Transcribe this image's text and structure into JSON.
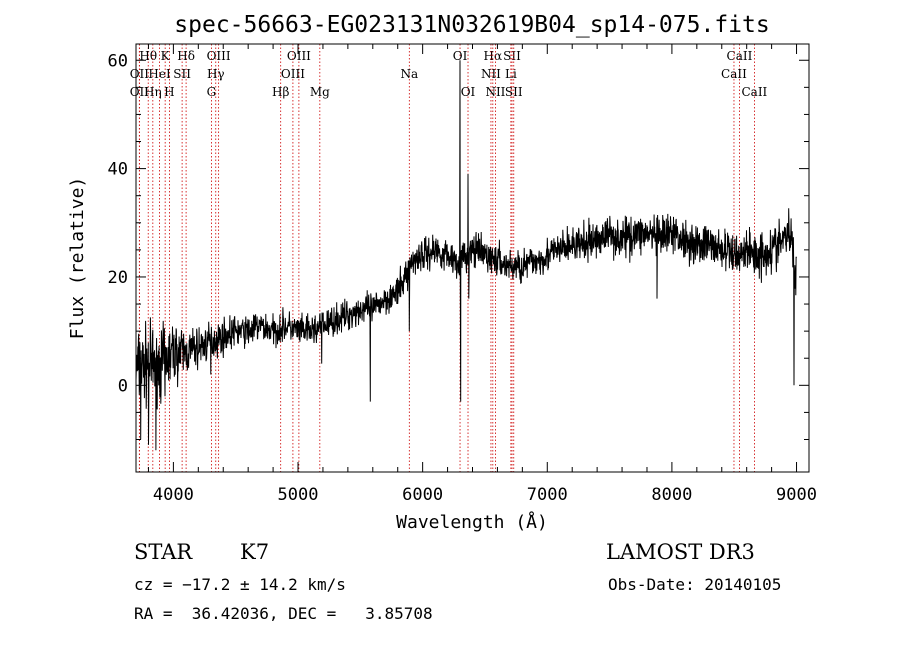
{
  "chart_data": {
    "type": "line",
    "title": "spec-56663-EG023131N032619B04_sp14-075.fits",
    "xlabel": "Wavelength (Å)",
    "ylabel": "Flux (relative)",
    "xlim": [
      3700,
      9100
    ],
    "ylim": [
      -16,
      63
    ],
    "x_ticks": [
      4000,
      5000,
      6000,
      7000,
      8000,
      9000
    ],
    "y_ticks": [
      0,
      20,
      40,
      60
    ],
    "line_color": "#000000",
    "marker_color": "#cc0000",
    "spectrum_anchors": {
      "x": [
        3700,
        3800,
        3900,
        4000,
        4100,
        4200,
        4300,
        4400,
        4500,
        4600,
        4700,
        4800,
        4900,
        5000,
        5100,
        5200,
        5300,
        5400,
        5500,
        5600,
        5700,
        5800,
        5860,
        5900,
        5960,
        6000,
        6100,
        6200,
        6300,
        6400,
        6500,
        6600,
        6700,
        6800,
        6900,
        7000,
        7100,
        7200,
        7300,
        7400,
        7500,
        7600,
        7700,
        7800,
        7900,
        8000,
        8100,
        8200,
        8300,
        8400,
        8500,
        8600,
        8700,
        8800,
        8900,
        8950,
        9000
      ],
      "y": [
        3,
        4,
        4,
        6,
        6,
        7,
        8,
        9,
        10,
        10,
        11,
        10,
        11,
        10,
        10,
        11,
        12,
        13,
        14,
        14,
        16,
        17,
        20,
        22,
        24,
        24,
        25,
        24,
        23,
        25,
        24,
        23,
        22,
        22,
        23,
        24,
        25,
        26,
        26,
        27,
        28,
        27,
        28,
        28,
        27,
        28,
        27,
        26,
        26,
        25,
        24,
        25,
        24,
        25,
        27,
        28,
        20
      ],
      "noise_amplitude": [
        5,
        5,
        4.5,
        4,
        3,
        2.6,
        2.4,
        2.2,
        2,
        2,
        2,
        2,
        2,
        2,
        2,
        2,
        2,
        2,
        2,
        2,
        2,
        2,
        2.2,
        2.2,
        2.2,
        2.2,
        2.2,
        2.2,
        2.2,
        2.2,
        2.2,
        2.2,
        2.2,
        2.2,
        2.2,
        2.2,
        2.3,
        2.3,
        2.4,
        2.5,
        2.6,
        2.6,
        2.6,
        2.6,
        2.6,
        2.6,
        2.6,
        2.6,
        2.6,
        2.6,
        2.8,
        2.8,
        3,
        3,
        3.2,
        3.2,
        3
      ]
    },
    "spectral_features": [
      {
        "x": 3738,
        "y": -10
      },
      {
        "x": 3800,
        "y": -11
      },
      {
        "x": 3860,
        "y": -12
      },
      {
        "x": 3933,
        "y": -2
      },
      {
        "x": 4300,
        "y": 2
      },
      {
        "x": 5190,
        "y": 4
      },
      {
        "x": 5580,
        "y": -3
      },
      {
        "x": 5893,
        "y": 10
      },
      {
        "x": 6300,
        "y": 60
      },
      {
        "x": 6305,
        "y": -3
      },
      {
        "x": 6364,
        "y": 39
      },
      {
        "x": 6370,
        "y": 16
      },
      {
        "x": 7880,
        "y": 16
      },
      {
        "x": 8980,
        "y": 0
      }
    ],
    "line_markers": [
      {
        "label": "Hθ",
        "wavelength": 3798,
        "row": 0
      },
      {
        "label": "OII",
        "wavelength": 3727,
        "row": 1
      },
      {
        "label": "OII",
        "wavelength": 3727,
        "row": 2
      },
      {
        "label": "Hη",
        "wavelength": 3835,
        "row": 2
      },
      {
        "label": "HeI",
        "wavelength": 3889,
        "row": 1
      },
      {
        "label": "K",
        "wavelength": 3934,
        "row": 0
      },
      {
        "label": "H",
        "wavelength": 3968,
        "row": 2
      },
      {
        "label": "SII",
        "wavelength": 4070,
        "row": 1
      },
      {
        "label": "Hδ",
        "wavelength": 4102,
        "row": 0
      },
      {
        "label": "OIII",
        "wavelength": 4363,
        "row": 0
      },
      {
        "label": "Hγ",
        "wavelength": 4340,
        "row": 1
      },
      {
        "label": "G",
        "wavelength": 4305,
        "row": 2
      },
      {
        "label": "Hβ",
        "wavelength": 4861,
        "row": 2
      },
      {
        "label": "OIII",
        "wavelength": 5007,
        "row": 0
      },
      {
        "label": "OIII",
        "wavelength": 4959,
        "row": 1
      },
      {
        "label": "Mg",
        "wavelength": 5175,
        "row": 2
      },
      {
        "label": "Na",
        "wavelength": 5893,
        "row": 1
      },
      {
        "label": "OI",
        "wavelength": 6300,
        "row": 0
      },
      {
        "label": "OI",
        "wavelength": 6364,
        "row": 2
      },
      {
        "label": "Hα",
        "wavelength": 6563,
        "row": 0
      },
      {
        "label": "SII",
        "wavelength": 6717,
        "row": 0
      },
      {
        "label": "NII",
        "wavelength": 6548,
        "row": 1
      },
      {
        "label": "Li",
        "wavelength": 6708,
        "row": 1
      },
      {
        "label": "NII",
        "wavelength": 6584,
        "row": 2
      },
      {
        "label": "SII",
        "wavelength": 6731,
        "row": 2
      },
      {
        "label": "CaII",
        "wavelength": 8542,
        "row": 0
      },
      {
        "label": "CaII",
        "wavelength": 8498,
        "row": 1
      },
      {
        "label": "CaII",
        "wavelength": 8662,
        "row": 2
      }
    ]
  },
  "footer": {
    "class_label": "STAR",
    "subclass": "K7",
    "survey": "LAMOST DR3",
    "redshift": "cz = −17.2 ± 14.2 km/s",
    "obs_date": "Obs-Date: 20140105",
    "coords": "RA =  36.42036, DEC =   3.85708"
  }
}
